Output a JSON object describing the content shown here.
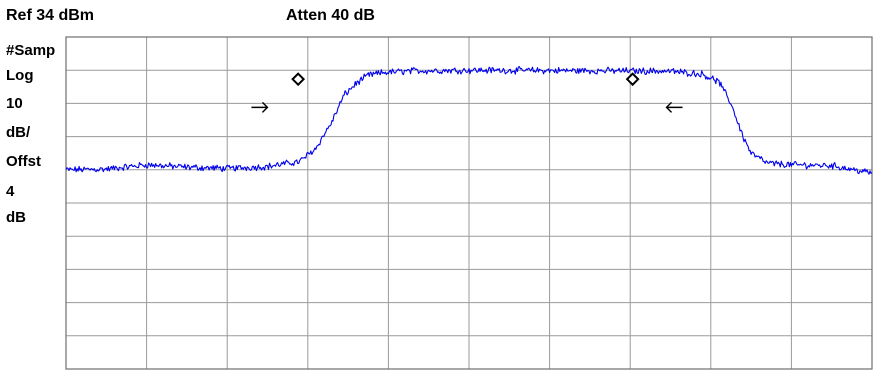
{
  "header": {
    "ref_level": "Ref 34 dBm",
    "attenuation": "Atten 40 dB"
  },
  "side_annotations": [
    "#Samp",
    "Log",
    "10",
    "dB/",
    "Offst",
    "4",
    "dB"
  ],
  "chart_data": {
    "type": "line",
    "title": "",
    "xlabel": "",
    "ylabel": "",
    "scale": "log",
    "ref_level_dbm": 34,
    "scale_db_per_div": 10,
    "offset_db": 4,
    "x_divisions": 10,
    "y_divisions": 10,
    "grid": true,
    "xlim": [
      0,
      10
    ],
    "ylim": [
      -66,
      34
    ],
    "series": [
      {
        "color": "#0000ee",
        "x": [
          0,
          0.5,
          1.0,
          1.5,
          2.0,
          2.5,
          2.9,
          3.1,
          3.3,
          3.45,
          3.6,
          3.75,
          3.95,
          4.3,
          5.0,
          6.0,
          7.0,
          7.5,
          7.9,
          8.1,
          8.25,
          8.4,
          8.5,
          8.7,
          9.0,
          9.5,
          10.0
        ],
        "y": [
          -6.0,
          -5.8,
          -4.5,
          -5.2,
          -5.6,
          -5.0,
          -3.5,
          0.5,
          8.5,
          16.5,
          20.0,
          22.5,
          23.3,
          23.8,
          24.0,
          23.9,
          23.8,
          23.7,
          22.8,
          20.5,
          14.0,
          4.0,
          -1.0,
          -4.0,
          -4.5,
          -4.7,
          -7.0
        ]
      }
    ],
    "markers": [
      {
        "shape": "diamond",
        "x": 2.88,
        "y": 21.3
      },
      {
        "shape": "diamond",
        "x": 7.03,
        "y": 21.3
      }
    ],
    "annotations": [
      {
        "shape": "arrow-right",
        "x": 2.4,
        "y": 12.8
      },
      {
        "shape": "arrow-left",
        "x": 7.55,
        "y": 12.8
      }
    ]
  }
}
